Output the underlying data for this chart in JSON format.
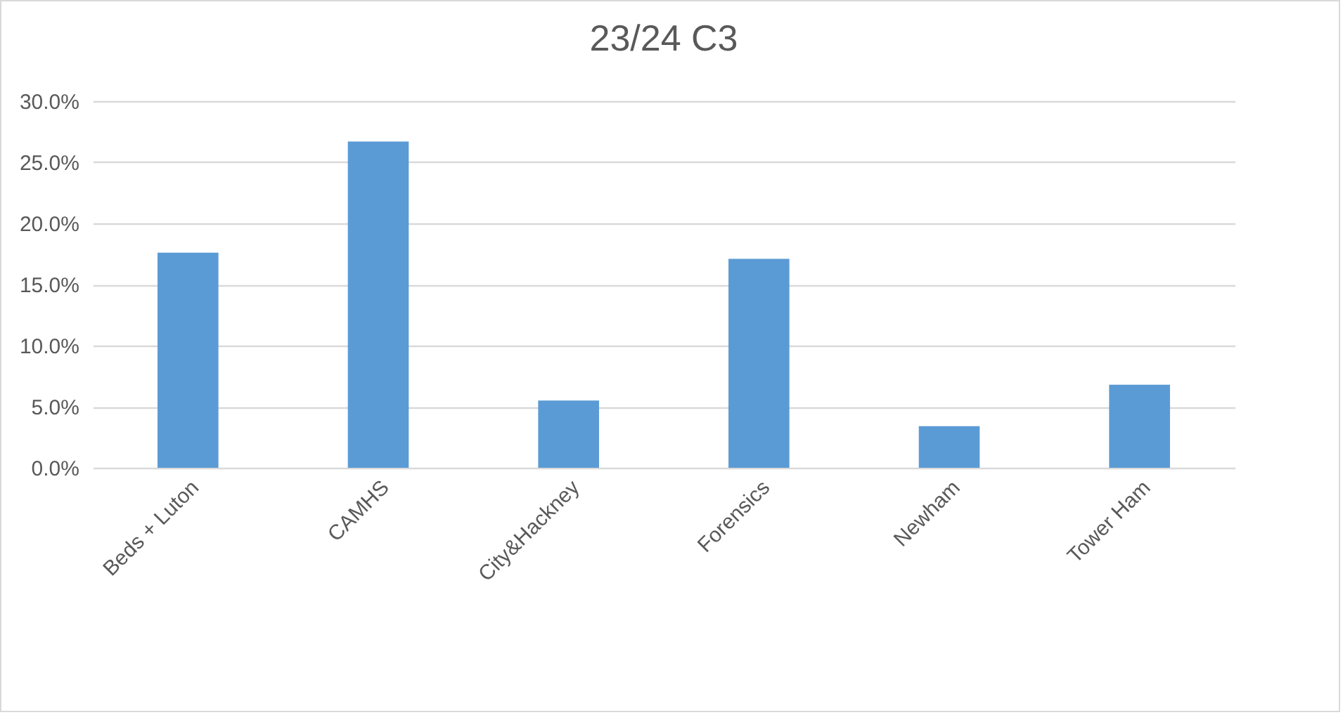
{
  "chart_data": {
    "type": "bar",
    "title": "23/24 C3",
    "categories": [
      "Beds + Luton",
      "CAMHS",
      "City&Hackney",
      "Forensics",
      "Newham",
      "Tower Ham"
    ],
    "values": [
      17.6,
      26.7,
      5.5,
      17.1,
      3.4,
      6.8
    ],
    "color": "#5b9bd5",
    "ylim": [
      0,
      30
    ],
    "yticks": [
      {
        "value": 0,
        "label": "0.0%"
      },
      {
        "value": 5,
        "label": "5.0%"
      },
      {
        "value": 10,
        "label": "10.0%"
      },
      {
        "value": 15,
        "label": "15.0%"
      },
      {
        "value": 20,
        "label": "20.0%"
      },
      {
        "value": 25,
        "label": "25.0%"
      },
      {
        "value": 30,
        "label": "30.0%"
      }
    ],
    "grid": "y"
  }
}
